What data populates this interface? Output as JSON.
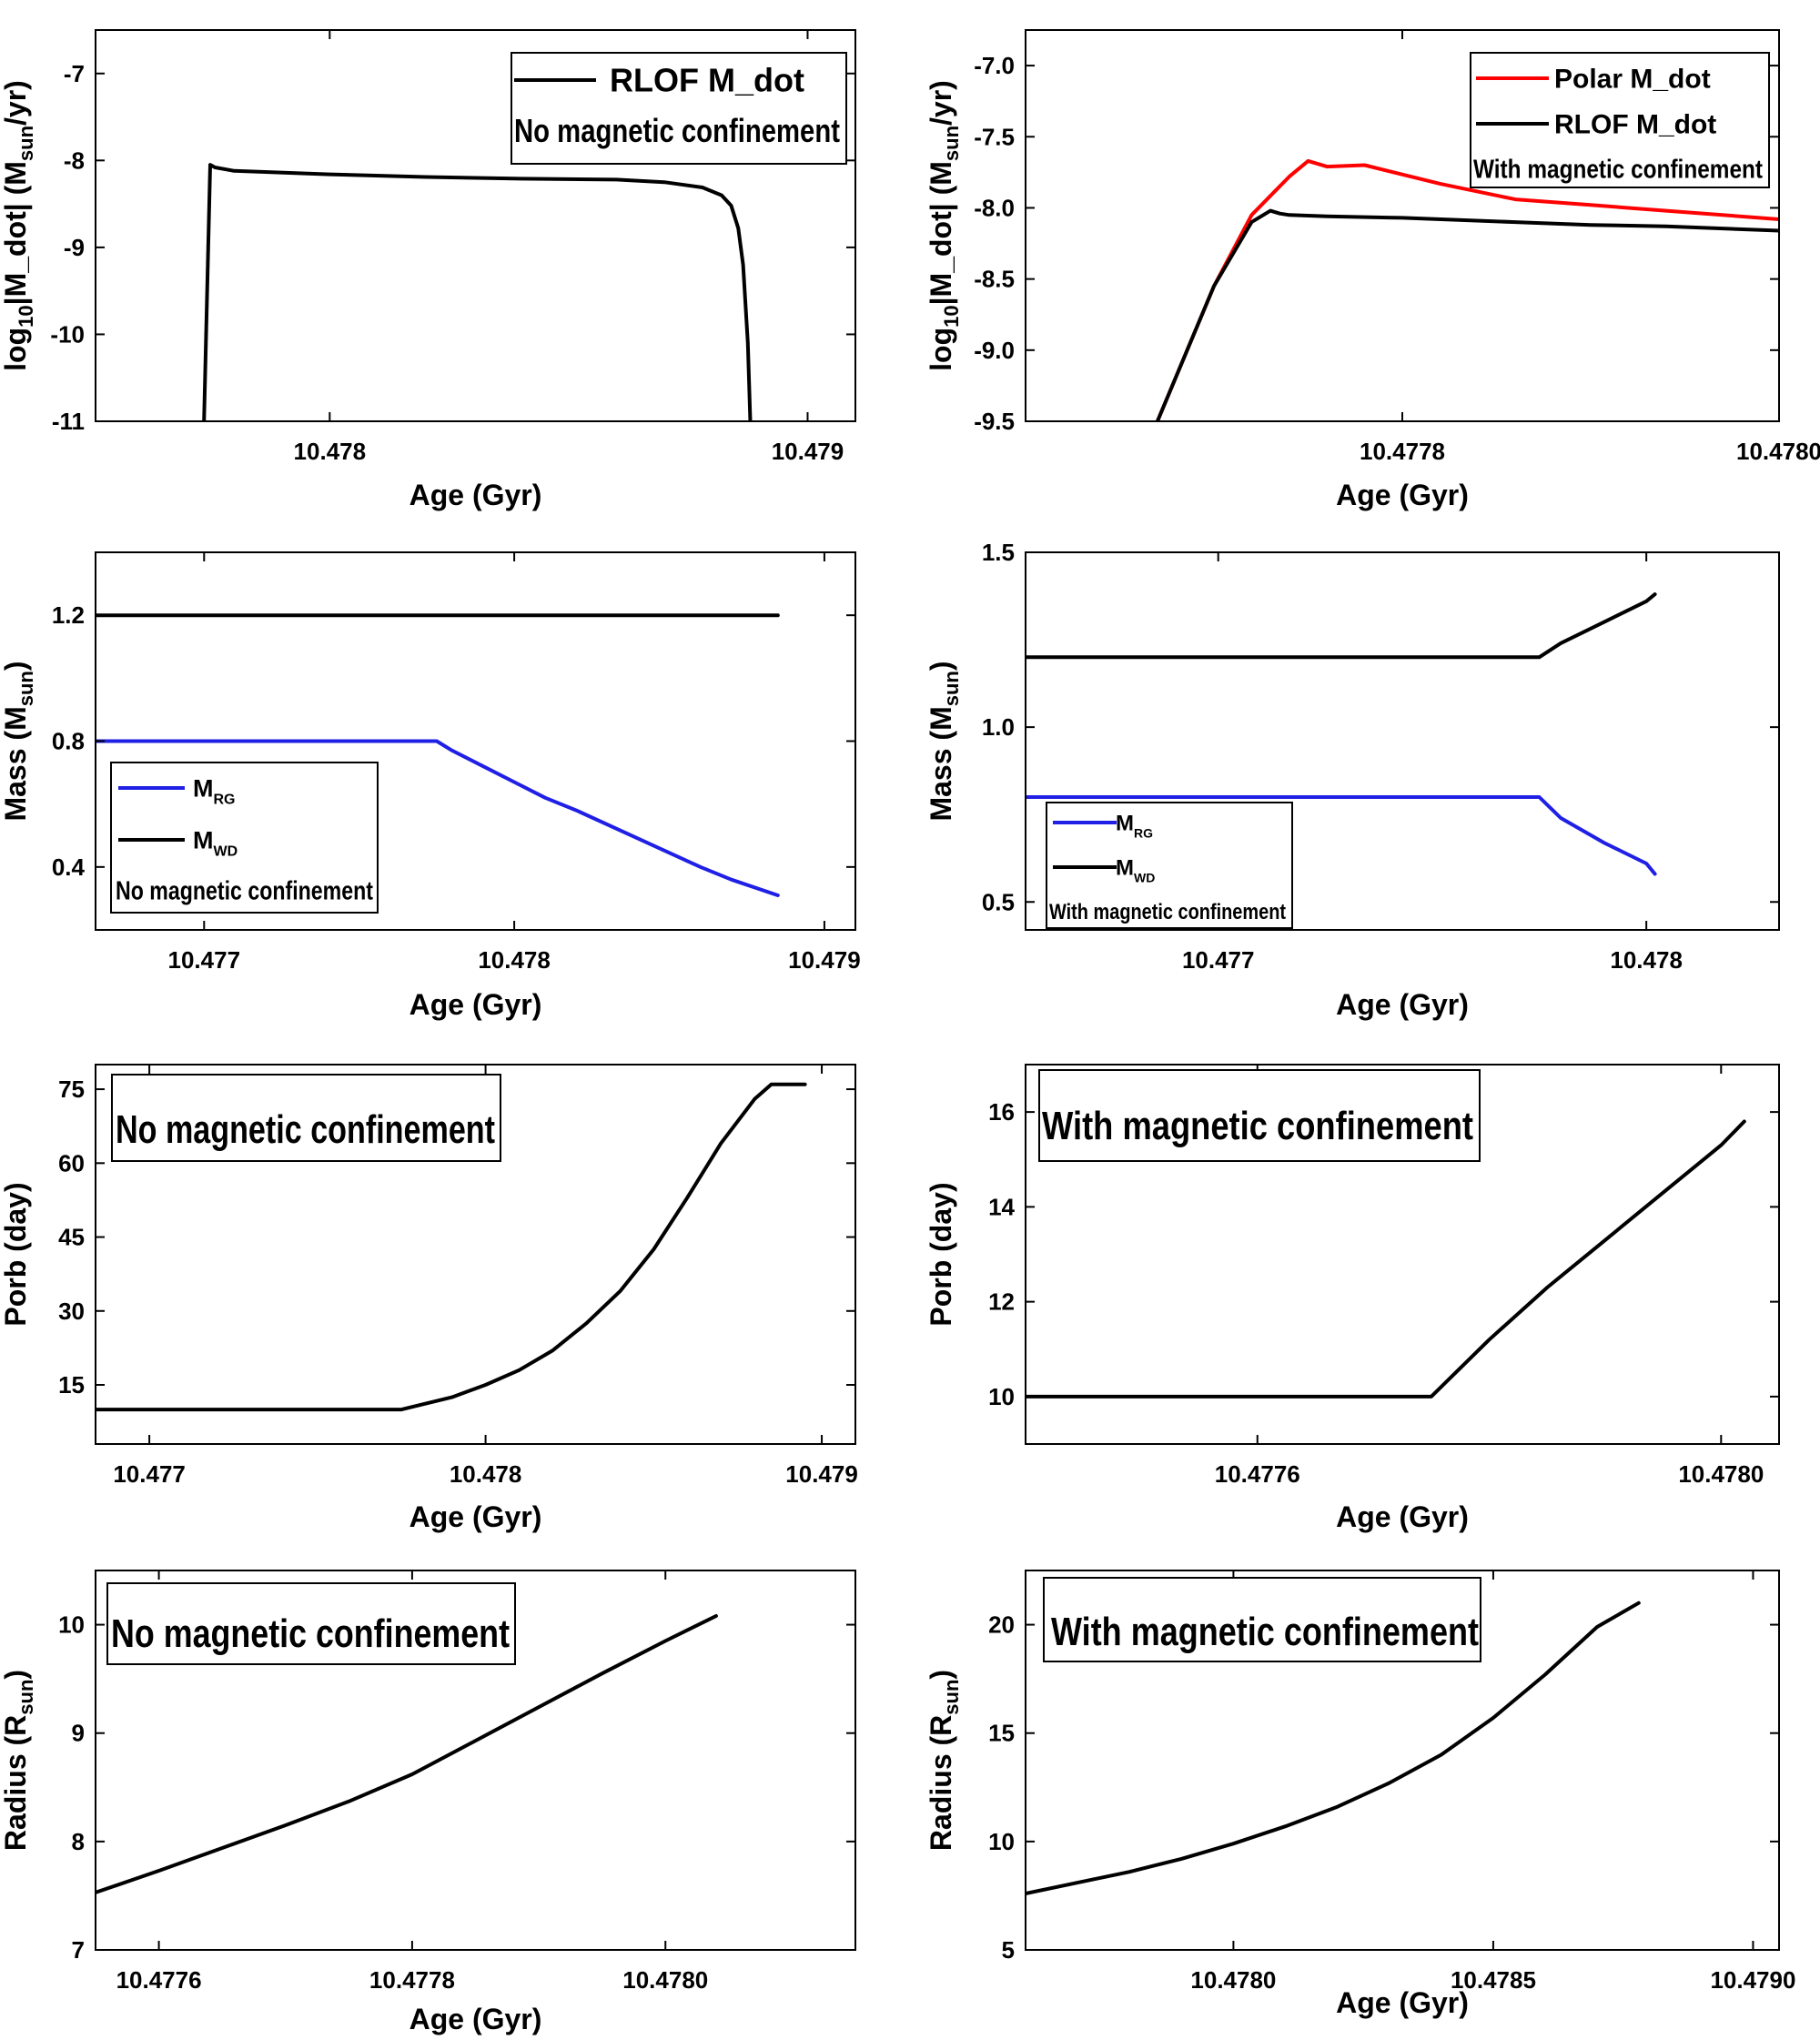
{
  "chart_data": [
    {
      "id": "p1",
      "type": "line",
      "xlabel": "Age (Gyr)",
      "ylabel_parts": [
        "log",
        "10",
        "|M_dot| (M",
        "sun",
        "/yr)"
      ],
      "xlim": [
        10.47751,
        10.4791
      ],
      "ylim": [
        -11.0,
        -6.5
      ],
      "xticks": [
        10.478,
        10.479
      ],
      "xtick_labels": [
        "10.478",
        "10.479"
      ],
      "yticks": [
        -7,
        -8,
        -9,
        -10,
        -11
      ],
      "ytick_labels": [
        "-7",
        "-8",
        "-9",
        "-10",
        "-11"
      ],
      "series": [
        {
          "name": "RLOF M_dot",
          "color": "#000000",
          "x": [
            10.477737,
            10.47775,
            10.47776,
            10.4778,
            10.478,
            10.4782,
            10.4784,
            10.4786,
            10.4787,
            10.47878,
            10.47882,
            10.47884,
            10.478855,
            10.478865,
            10.478875,
            10.47888
          ],
          "y": [
            -11.0,
            -8.05,
            -8.08,
            -8.12,
            -8.16,
            -8.19,
            -8.21,
            -8.22,
            -8.25,
            -8.31,
            -8.4,
            -8.52,
            -8.78,
            -9.2,
            -10.1,
            -11.0
          ]
        }
      ],
      "legend": {
        "entries": [
          {
            "label": "RLOF M_dot",
            "color": "#000000"
          }
        ],
        "note": "No magnetic confinement",
        "position": "top-right"
      }
    },
    {
      "id": "p2",
      "type": "line",
      "xlabel": "Age (Gyr)",
      "ylabel_parts": [
        "log",
        "10",
        "|M_dot| (M",
        "sun",
        "/yr)"
      ],
      "xlim": [
        10.4776,
        10.478
      ],
      "ylim": [
        -9.5,
        -6.75
      ],
      "xticks": [
        10.4778,
        10.478
      ],
      "xtick_labels": [
        "10.4778",
        "10.4780"
      ],
      "yticks": [
        -7.0,
        -7.5,
        -8.0,
        -8.5,
        -9.0,
        -9.5
      ],
      "ytick_labels": [
        "-7.0",
        "-7.5",
        "-8.0",
        "-8.5",
        "-9.0",
        "-9.5"
      ],
      "series": [
        {
          "name": "Polar M_dot",
          "color": "#ff0000",
          "x": [
            10.47767,
            10.4777,
            10.47772,
            10.47774,
            10.47775,
            10.47776,
            10.47778,
            10.47782,
            10.47786,
            10.4779,
            10.47794,
            10.478
          ],
          "y": [
            -9.5,
            -8.55,
            -8.05,
            -7.78,
            -7.67,
            -7.71,
            -7.7,
            -7.83,
            -7.94,
            -7.98,
            -8.02,
            -8.08
          ]
        },
        {
          "name": "RLOF M_dot",
          "color": "#000000",
          "x": [
            10.47767,
            10.4777,
            10.47772,
            10.47773,
            10.477735,
            10.47774,
            10.47776,
            10.4778,
            10.47786,
            10.4779,
            10.47794,
            10.478
          ],
          "y": [
            -9.5,
            -8.55,
            -8.1,
            -8.02,
            -8.04,
            -8.05,
            -8.06,
            -8.07,
            -8.1,
            -8.12,
            -8.13,
            -8.16
          ]
        }
      ],
      "legend": {
        "entries": [
          {
            "label": "Polar M_dot",
            "color": "#ff0000"
          },
          {
            "label": "RLOF M_dot",
            "color": "#000000"
          }
        ],
        "note": "With magnetic confinement",
        "position": "top-right"
      }
    },
    {
      "id": "p3",
      "type": "line",
      "xlabel": "Age (Gyr)",
      "ylabel_parts": [
        "Mass (M",
        "sun",
        ")"
      ],
      "xlim": [
        10.47665,
        10.4791
      ],
      "ylim": [
        0.2,
        1.4
      ],
      "xticks": [
        10.477,
        10.478,
        10.479
      ],
      "xtick_labels": [
        "10.477",
        "10.478",
        "10.479"
      ],
      "yticks": [
        0.4,
        0.8,
        1.2
      ],
      "ytick_labels": [
        "0.4",
        "0.8",
        "1.2"
      ],
      "series": [
        {
          "name": "M_RG",
          "color": "#1f1fe6",
          "x": [
            10.47665,
            10.47775,
            10.4778,
            10.4779,
            10.478,
            10.4781,
            10.4782,
            10.4784,
            10.4786,
            10.4787,
            10.47885
          ],
          "y": [
            0.8,
            0.8,
            0.77,
            0.72,
            0.67,
            0.62,
            0.58,
            0.49,
            0.4,
            0.36,
            0.31
          ]
        },
        {
          "name": "M_WD",
          "color": "#000000",
          "x": [
            10.47665,
            10.47885
          ],
          "y": [
            1.2,
            1.2
          ]
        }
      ],
      "legend": {
        "entries": [
          {
            "label": "M",
            "sub": "RG",
            "color": "#1f1fe6"
          },
          {
            "label": "M",
            "sub": "WD",
            "color": "#000000"
          }
        ],
        "note": "No magnetic confinement",
        "position": "bottom-left"
      }
    },
    {
      "id": "p4",
      "type": "line",
      "xlabel": "Age (Gyr)",
      "ylabel_parts": [
        "Mass (M",
        "sun",
        ")"
      ],
      "xlim": [
        10.47655,
        10.47831
      ],
      "ylim": [
        0.42,
        1.5
      ],
      "xticks": [
        10.477,
        10.478
      ],
      "xtick_labels": [
        "10.477",
        "10.478"
      ],
      "yticks": [
        0.5,
        1.0,
        1.5
      ],
      "ytick_labels": [
        "0.5",
        "1.0",
        "1.5"
      ],
      "series": [
        {
          "name": "M_RG",
          "color": "#1f1fe6",
          "x": [
            10.47655,
            10.47775,
            10.4778,
            10.4779,
            10.478,
            10.47802
          ],
          "y": [
            0.8,
            0.8,
            0.74,
            0.67,
            0.61,
            0.58
          ]
        },
        {
          "name": "M_WD",
          "color": "#000000",
          "x": [
            10.47655,
            10.47775,
            10.4778,
            10.4779,
            10.478,
            10.47802
          ],
          "y": [
            1.2,
            1.2,
            1.24,
            1.3,
            1.36,
            1.38
          ]
        }
      ],
      "legend": {
        "entries": [
          {
            "label": "M",
            "sub": "RG",
            "color": "#1f1fe6"
          },
          {
            "label": "M",
            "sub": "WD",
            "color": "#000000"
          }
        ],
        "note": "With magnetic confinement",
        "position": "bottom-left"
      }
    },
    {
      "id": "p5",
      "type": "line",
      "xlabel": "Age (Gyr)",
      "ylabel_parts": [
        "Porb (day)"
      ],
      "xlim": [
        10.47684,
        10.4791
      ],
      "ylim": [
        3,
        80
      ],
      "xticks": [
        10.477,
        10.478,
        10.479
      ],
      "xtick_labels": [
        "10.477",
        "10.478",
        "10.479"
      ],
      "yticks": [
        15,
        30,
        45,
        60,
        75
      ],
      "ytick_labels": [
        "15",
        "30",
        "45",
        "60",
        "75"
      ],
      "series": [
        {
          "name": "Porb",
          "color": "#000000",
          "x": [
            10.47684,
            10.47775,
            10.4779,
            10.478,
            10.4781,
            10.4782,
            10.4783,
            10.4784,
            10.4785,
            10.4786,
            10.4787,
            10.4788,
            10.47885,
            10.47895
          ],
          "y": [
            10,
            10,
            12.5,
            15,
            18,
            22,
            27.5,
            34,
            42.5,
            53,
            64,
            73,
            76,
            76
          ]
        }
      ],
      "legend": {
        "entries": [],
        "note": "No magnetic confinement",
        "position": "top-left"
      }
    },
    {
      "id": "p6",
      "type": "line",
      "xlabel": "Age (Gyr)",
      "ylabel_parts": [
        "Porb (day)"
      ],
      "xlim": [
        10.4774,
        10.47805
      ],
      "ylim": [
        9,
        17
      ],
      "xticks": [
        10.4776,
        10.478
      ],
      "xtick_labels": [
        "10.4776",
        "10.4780"
      ],
      "yticks": [
        10,
        12,
        14,
        16
      ],
      "ytick_labels": [
        "10",
        "12",
        "14",
        "16"
      ],
      "series": [
        {
          "name": "Porb",
          "color": "#000000",
          "x": [
            10.4774,
            10.47775,
            10.4778,
            10.47785,
            10.4779,
            10.47795,
            10.478,
            10.47802
          ],
          "y": [
            10.0,
            10.0,
            11.2,
            12.3,
            13.3,
            14.3,
            15.3,
            15.8
          ]
        }
      ],
      "legend": {
        "entries": [],
        "note": "With magnetic confinement",
        "position": "top-left"
      }
    },
    {
      "id": "p7",
      "type": "line",
      "xlabel": "Age (Gyr)",
      "ylabel_parts": [
        "Radius (R",
        "sun",
        ")"
      ],
      "xlim": [
        10.47755,
        10.47815
      ],
      "ylim": [
        7.0,
        10.5
      ],
      "xticks": [
        10.4776,
        10.4778,
        10.478
      ],
      "xtick_labels": [
        "10.4776",
        "10.4778",
        "10.4780"
      ],
      "yticks": [
        7,
        8,
        9,
        10
      ],
      "ytick_labels": [
        "7",
        "8",
        "9",
        "10"
      ],
      "series": [
        {
          "name": "Radius",
          "color": "#000000",
          "x": [
            10.47755,
            10.4776,
            10.47765,
            10.4777,
            10.47775,
            10.4778,
            10.47785,
            10.4779,
            10.47795,
            10.478,
            10.47804
          ],
          "y": [
            7.53,
            7.73,
            7.94,
            8.15,
            8.37,
            8.62,
            8.93,
            9.24,
            9.55,
            9.85,
            10.08
          ]
        }
      ],
      "legend": {
        "entries": [],
        "note": "No magnetic confinement",
        "position": "top-left"
      }
    },
    {
      "id": "p8",
      "type": "line",
      "xlabel": "Age (Gyr)",
      "ylabel_parts": [
        "Radius (R",
        "sun",
        ")"
      ],
      "xlim": [
        10.4776,
        10.47905
      ],
      "ylim": [
        5,
        22.5
      ],
      "xticks": [
        10.478,
        10.4785,
        10.479
      ],
      "xtick_labels": [
        "10.4780",
        "10.4785",
        "10.4790"
      ],
      "yticks": [
        5,
        10,
        15,
        20
      ],
      "ytick_labels": [
        "5",
        "10",
        "15",
        "20"
      ],
      "series": [
        {
          "name": "Radius",
          "color": "#000000",
          "x": [
            10.4776,
            10.4777,
            10.4778,
            10.4779,
            10.478,
            10.4781,
            10.4782,
            10.4783,
            10.4784,
            10.4785,
            10.4786,
            10.4787,
            10.47878
          ],
          "y": [
            7.6,
            8.1,
            8.6,
            9.2,
            9.9,
            10.7,
            11.6,
            12.7,
            14.0,
            15.7,
            17.7,
            19.9,
            21.0
          ]
        }
      ],
      "legend": {
        "entries": [],
        "note": "With magnetic confinement",
        "position": "top-left"
      }
    }
  ]
}
